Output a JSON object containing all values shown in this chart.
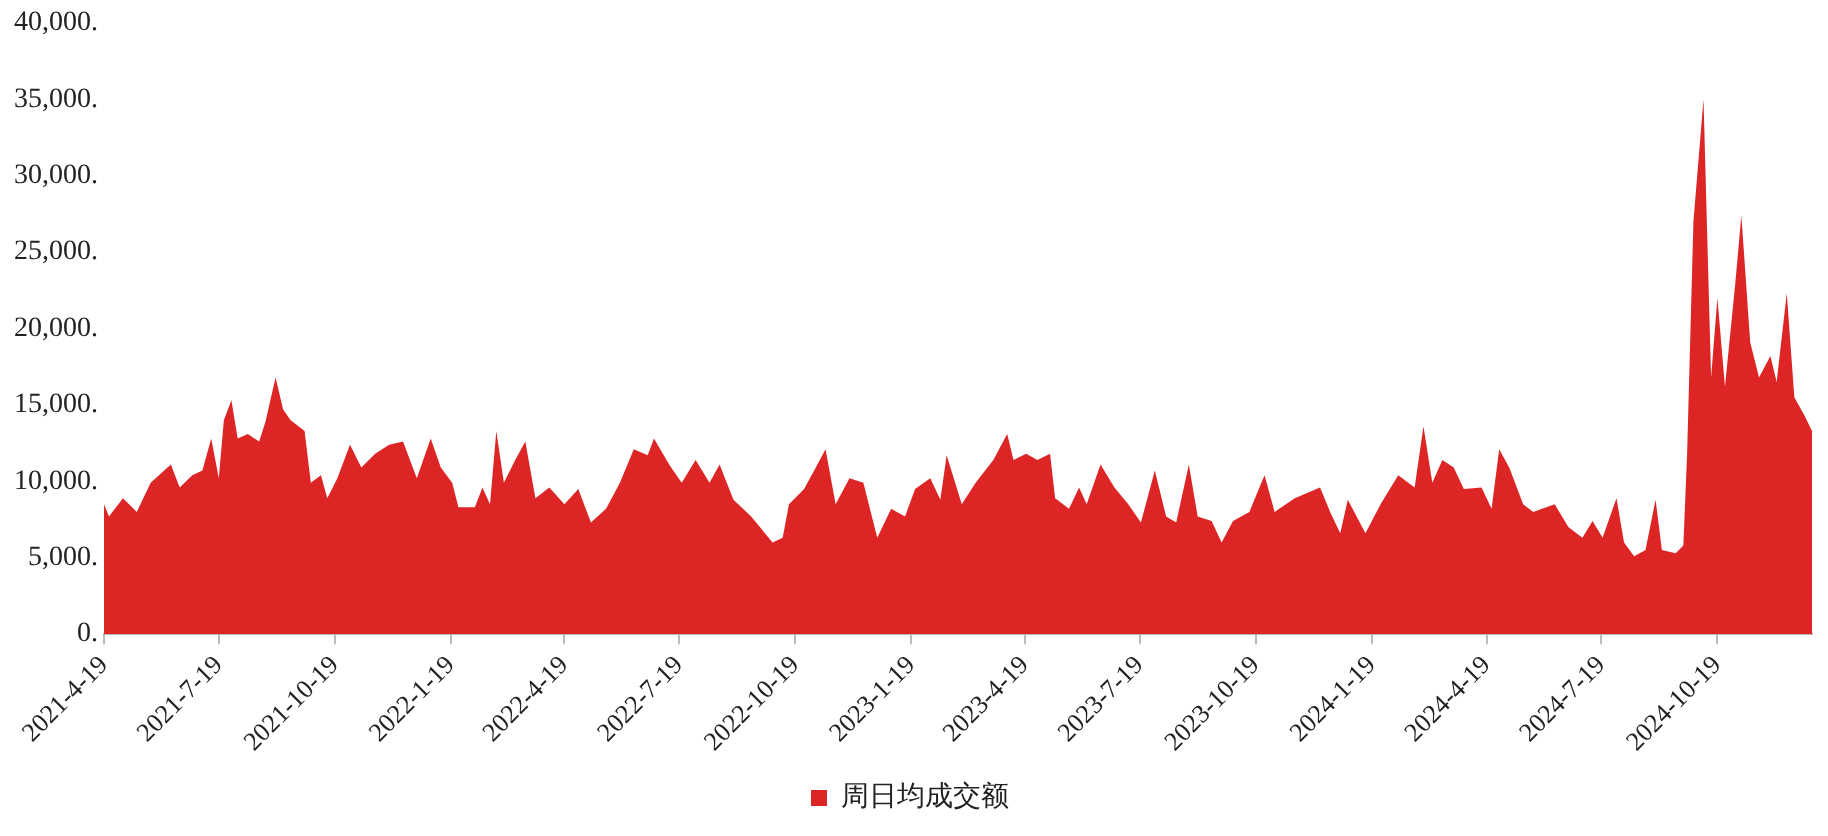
{
  "chart_data": {
    "type": "area",
    "legend": "bottom",
    "x": [
      "2021-04-19",
      "2021-04-23",
      "2021-05-04",
      "2021-05-15",
      "2021-05-26",
      "2021-06-11",
      "2021-06-18",
      "2021-06-28",
      "2021-07-06",
      "2021-07-13",
      "2021-07-19",
      "2021-07-23",
      "2021-07-29",
      "2021-08-03",
      "2021-08-11",
      "2021-08-20",
      "2021-08-25",
      "2021-09-02",
      "2021-09-08",
      "2021-09-14",
      "2021-09-25",
      "2021-09-30",
      "2021-10-08",
      "2021-10-13",
      "2021-10-21",
      "2021-10-31",
      "2021-11-09",
      "2021-11-20",
      "2021-12-01",
      "2021-12-12",
      "2021-12-23",
      "2022-01-03",
      "2022-01-11",
      "2022-01-20",
      "2022-01-25",
      "2022-02-07",
      "2022-02-13",
      "2022-02-19",
      "2022-02-24",
      "2022-03-02",
      "2022-03-11",
      "2022-03-19",
      "2022-03-27",
      "2022-04-07",
      "2022-04-19",
      "2022-04-30",
      "2022-05-10",
      "2022-05-22",
      "2022-06-02",
      "2022-06-13",
      "2022-06-24",
      "2022-06-29",
      "2022-07-11",
      "2022-07-21",
      "2022-08-01",
      "2022-08-12",
      "2022-08-20",
      "2022-08-31",
      "2022-09-14",
      "2022-10-01",
      "2022-10-09",
      "2022-10-14",
      "2022-10-26",
      "2022-11-03",
      "2022-11-12",
      "2022-11-20",
      "2022-12-01",
      "2022-12-12",
      "2022-12-23",
      "2023-01-03",
      "2023-01-14",
      "2023-01-22",
      "2023-02-03",
      "2023-02-11",
      "2023-02-16",
      "2023-02-28",
      "2023-03-11",
      "2023-03-25",
      "2023-04-05",
      "2023-04-10",
      "2023-04-20",
      "2023-04-29",
      "2023-05-09",
      "2023-05-13",
      "2023-05-24",
      "2023-06-01",
      "2023-06-07",
      "2023-06-18",
      "2023-06-29",
      "2023-07-10",
      "2023-07-20",
      "2023-07-31",
      "2023-08-09",
      "2023-08-17",
      "2023-08-27",
      "2023-09-03",
      "2023-09-14",
      "2023-09-22",
      "2023-10-01",
      "2023-10-14",
      "2023-10-26",
      "2023-11-03",
      "2023-11-19",
      "2023-12-09",
      "2023-12-17",
      "2023-12-25",
      "2023-12-31",
      "2024-01-14",
      "2024-01-26",
      "2024-02-09",
      "2024-02-22",
      "2024-02-29",
      "2024-03-07",
      "2024-03-15",
      "2024-03-24",
      "2024-04-01",
      "2024-04-15",
      "2024-04-23",
      "2024-04-29",
      "2024-05-07",
      "2024-05-18",
      "2024-05-26",
      "2024-06-12",
      "2024-06-23",
      "2024-07-04",
      "2024-07-12",
      "2024-07-20",
      "2024-07-31",
      "2024-08-06",
      "2024-08-14",
      "2024-08-23",
      "2024-08-31",
      "2024-09-05",
      "2024-09-16",
      "2024-09-22",
      "2024-09-25",
      "2024-09-30",
      "2024-10-08",
      "2024-10-14",
      "2024-10-19",
      "2024-10-25",
      "2024-11-02",
      "2024-11-07",
      "2024-11-14",
      "2024-11-21",
      "2024-11-30",
      "2024-12-05",
      "2024-12-13",
      "2024-12-19",
      "2024-12-27",
      "2025-01-02"
    ],
    "series": [
      {
        "name": "周日均成交额",
        "color": "#dd2526",
        "values": [
          8500,
          7700,
          8900,
          8000,
          9900,
          11100,
          9600,
          10400,
          10700,
          12800,
          10200,
          14000,
          15300,
          12800,
          13100,
          12600,
          13900,
          16800,
          14700,
          14000,
          13300,
          9900,
          10400,
          8900,
          10200,
          12400,
          10900,
          11800,
          12400,
          12600,
          10200,
          12800,
          10900,
          9900,
          8300,
          8300,
          9600,
          8500,
          13300,
          9900,
          11400,
          12600,
          8900,
          9600,
          8500,
          9500,
          7300,
          8200,
          9900,
          12100,
          11700,
          12800,
          11100,
          9900,
          11400,
          9900,
          11100,
          8800,
          7700,
          6000,
          6300,
          8500,
          9500,
          10700,
          12100,
          8500,
          10200,
          9900,
          6300,
          8200,
          7700,
          9500,
          10200,
          8800,
          11700,
          8500,
          9900,
          11400,
          13100,
          11400,
          11800,
          11400,
          11800,
          8900,
          8200,
          9600,
          8500,
          11100,
          9600,
          8500,
          7300,
          10700,
          7700,
          7300,
          11100,
          7700,
          7400,
          6000,
          7400,
          8000,
          10400,
          8000,
          8900,
          9600,
          8000,
          6600,
          8800,
          6600,
          8500,
          10400,
          9600,
          13600,
          9900,
          11400,
          10900,
          9500,
          9600,
          8200,
          12100,
          10900,
          8500,
          8000,
          8500,
          7000,
          6300,
          7400,
          6300,
          8900,
          6000,
          5100,
          5500,
          8800,
          5500,
          5300,
          5800,
          11800,
          27000,
          35000,
          16800,
          22000,
          16200,
          22800,
          27400,
          19100,
          16800,
          18200,
          16500,
          22300,
          15500,
          14300,
          13300
        ]
      }
    ],
    "xlim": [
      "2021-04-19",
      "2025-01-02"
    ],
    "xticks": [
      {
        "value": "2021-04-19",
        "label": "2021-4-19"
      },
      {
        "value": "2021-07-19",
        "label": "2021-7-19"
      },
      {
        "value": "2021-10-19",
        "label": "2021-10-19"
      },
      {
        "value": "2022-01-19",
        "label": "2022-1-19"
      },
      {
        "value": "2022-04-19",
        "label": "2022-4-19"
      },
      {
        "value": "2022-07-19",
        "label": "2022-7-19"
      },
      {
        "value": "2022-10-19",
        "label": "2022-10-19"
      },
      {
        "value": "2023-01-19",
        "label": "2023-1-19"
      },
      {
        "value": "2023-04-19",
        "label": "2023-4-19"
      },
      {
        "value": "2023-07-19",
        "label": "2023-7-19"
      },
      {
        "value": "2023-10-19",
        "label": "2023-10-19"
      },
      {
        "value": "2024-01-19",
        "label": "2024-1-19"
      },
      {
        "value": "2024-04-19",
        "label": "2024-4-19"
      },
      {
        "value": "2024-07-19",
        "label": "2024-7-19"
      },
      {
        "value": "2024-10-19",
        "label": "2024-10-19"
      }
    ],
    "ylim": [
      0,
      40000
    ],
    "yticks": [
      {
        "value": 0,
        "label": "0."
      },
      {
        "value": 5000,
        "label": "5,000."
      },
      {
        "value": 10000,
        "label": "10,000."
      },
      {
        "value": 15000,
        "label": "15,000."
      },
      {
        "value": 20000,
        "label": "20,000."
      },
      {
        "value": 25000,
        "label": "25,000."
      },
      {
        "value": 30000,
        "label": "30,000."
      },
      {
        "value": 35000,
        "label": "35,000."
      },
      {
        "value": 40000,
        "label": "40,000."
      }
    ]
  }
}
